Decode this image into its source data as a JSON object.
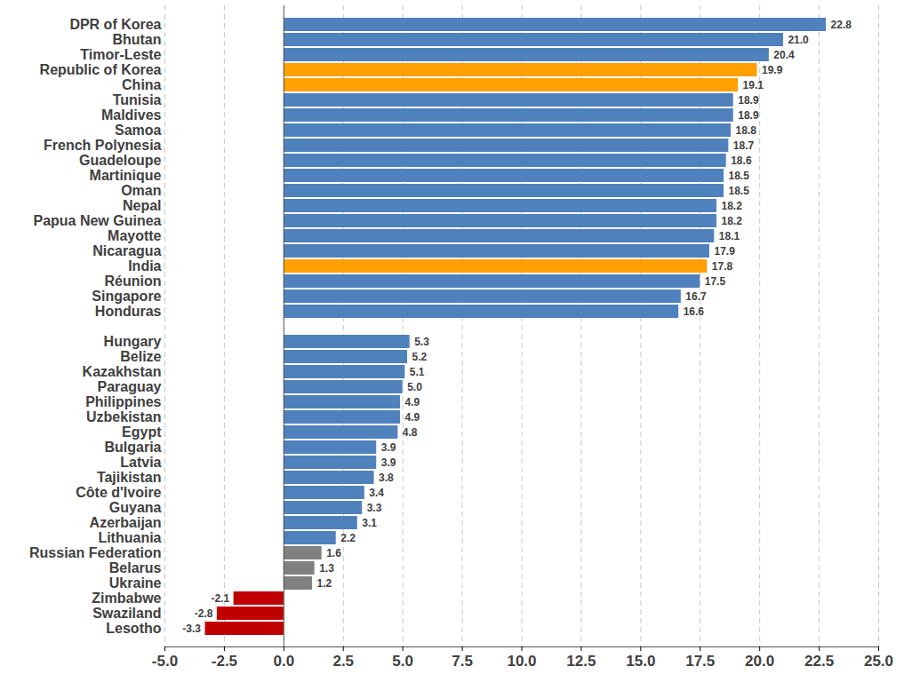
{
  "chart_data": {
    "type": "bar",
    "orientation": "horizontal",
    "categories": [
      "DPR of Korea",
      "Bhutan",
      "Timor-Leste",
      "Republic of Korea",
      "China",
      "Tunisia",
      "Maldives",
      "Samoa",
      "French Polynesia",
      "Guadeloupe",
      "Martinique",
      "Oman",
      "Nepal",
      "Papua New Guinea",
      "Mayotte",
      "Nicaragua",
      "India",
      "Réunion",
      "Singapore",
      "Honduras",
      null,
      "Hungary",
      "Belize",
      "Kazakhstan",
      "Paraguay",
      "Philippines",
      "Uzbekistan",
      "Egypt",
      "Bulgaria",
      "Latvia",
      "Tajikistan",
      "Côte d'Ivoire",
      "Guyana",
      "Azerbaijan",
      "Lithuania",
      "Russian Federation",
      "Belarus",
      "Ukraine",
      "Zimbabwe",
      "Swaziland",
      "Lesotho"
    ],
    "values": [
      22.8,
      21.0,
      20.4,
      19.9,
      19.1,
      18.9,
      18.9,
      18.8,
      18.7,
      18.6,
      18.5,
      18.5,
      18.2,
      18.2,
      18.1,
      17.9,
      17.8,
      17.5,
      16.7,
      16.6,
      null,
      5.3,
      5.2,
      5.1,
      5.0,
      4.9,
      4.9,
      4.8,
      3.9,
      3.9,
      3.8,
      3.4,
      3.3,
      3.1,
      2.2,
      1.6,
      1.3,
      1.2,
      -2.1,
      -2.8,
      -3.3
    ],
    "value_labels": [
      "22.8",
      "21.0",
      "20.4",
      "19.9",
      "19.1",
      "18.9",
      "18.9",
      "18.8",
      "18.7",
      "18.6",
      "18.5",
      "18.5",
      "18.2",
      "18.2",
      "18.1",
      "17.9",
      "17.8",
      "17.5",
      "16.7",
      "16.6",
      null,
      "5.3",
      "5.2",
      "5.1",
      "5.0",
      "4.9",
      "4.9",
      "4.8",
      "3.9",
      "3.9",
      "3.8",
      "3.4",
      "3.3",
      "3.1",
      "2.2",
      "1.6",
      "1.3",
      "1.2",
      "-2.1",
      "-2.8",
      "-3.3"
    ],
    "colors": [
      "#4F81BD",
      "#4F81BD",
      "#4F81BD",
      "#FFA000",
      "#FFA000",
      "#4F81BD",
      "#4F81BD",
      "#4F81BD",
      "#4F81BD",
      "#4F81BD",
      "#4F81BD",
      "#4F81BD",
      "#4F81BD",
      "#4F81BD",
      "#4F81BD",
      "#4F81BD",
      "#FFA000",
      "#4F81BD",
      "#4F81BD",
      "#4F81BD",
      null,
      "#4F81BD",
      "#4F81BD",
      "#4F81BD",
      "#4F81BD",
      "#4F81BD",
      "#4F81BD",
      "#4F81BD",
      "#4F81BD",
      "#4F81BD",
      "#4F81BD",
      "#4F81BD",
      "#4F81BD",
      "#4F81BD",
      "#4F81BD",
      "#808080",
      "#808080",
      "#808080",
      "#C00000",
      "#C00000",
      "#C00000"
    ],
    "xlim": [
      -5.0,
      25.0
    ],
    "xticks": [
      {
        "value": -5.0,
        "label": "-5.0"
      },
      {
        "value": -2.5,
        "label": "-2.5"
      },
      {
        "value": 0,
        "label": "0.0"
      },
      {
        "value": 2.5,
        "label": "2.5"
      },
      {
        "value": 5.0,
        "label": "5.0"
      },
      {
        "value": 7.5,
        "label": "7.5"
      },
      {
        "value": 10.0,
        "label": "10.0"
      },
      {
        "value": 12.5,
        "label": "12.5"
      },
      {
        "value": 15.0,
        "label": "15.0"
      },
      {
        "value": 17.5,
        "label": "17.5"
      },
      {
        "value": 20.0,
        "label": "20.0"
      },
      {
        "value": 22.5,
        "label": "22.5"
      },
      {
        "value": 25.0,
        "label": "25.0"
      }
    ],
    "grid": true,
    "data_labels": true
  }
}
